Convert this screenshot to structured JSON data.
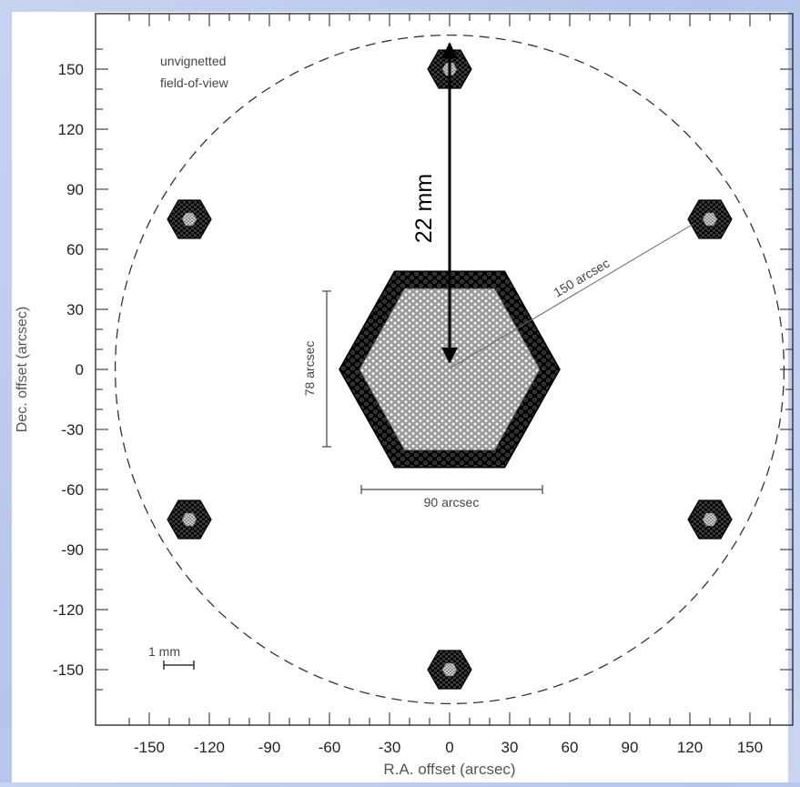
{
  "chart_data": {
    "type": "diagram",
    "xlabel": "R.A. offset (arcsec)",
    "ylabel": "Dec. offset (arcsec)",
    "xlim": [
      -165,
      165
    ],
    "ylim": [
      -165,
      165
    ],
    "x_ticks": [
      -150,
      -120,
      -90,
      -60,
      -30,
      0,
      30,
      60,
      90,
      120,
      150
    ],
    "y_ticks": [
      150,
      120,
      90,
      60,
      30,
      0,
      -30,
      -60,
      -90,
      -120,
      -150
    ],
    "fov_circle": {
      "center": [
        0,
        0
      ],
      "radius_arcsec": 167,
      "style": "dashed",
      "label": "unvignetted\nfield-of-view"
    },
    "main_ifu": {
      "center": [
        0,
        0
      ],
      "width_arcsec": 90,
      "height_arcsec": 78
    },
    "guide_bundles": [
      {
        "center": [
          0,
          150
        ]
      },
      {
        "center": [
          130,
          75
        ]
      },
      {
        "center": [
          130,
          -75
        ]
      },
      {
        "center": [
          0,
          -150
        ]
      },
      {
        "center": [
          -130,
          -75
        ]
      },
      {
        "center": [
          -130,
          75
        ]
      }
    ],
    "annotations": {
      "fov_label": "unvignetted\nfield-of-view",
      "radius_label": "150 arcsec",
      "height_label": "78 arcsec",
      "width_label": "90 arcsec",
      "arrow_label": "22 mm",
      "scalebar_label": "1 mm"
    }
  },
  "colors": {
    "page_background": "#c0cdef",
    "plot_background": "#ffffff",
    "fiber_dark": "#111111",
    "fiber_light": "#bdbdbd",
    "ink": "#1a1a1a"
  }
}
